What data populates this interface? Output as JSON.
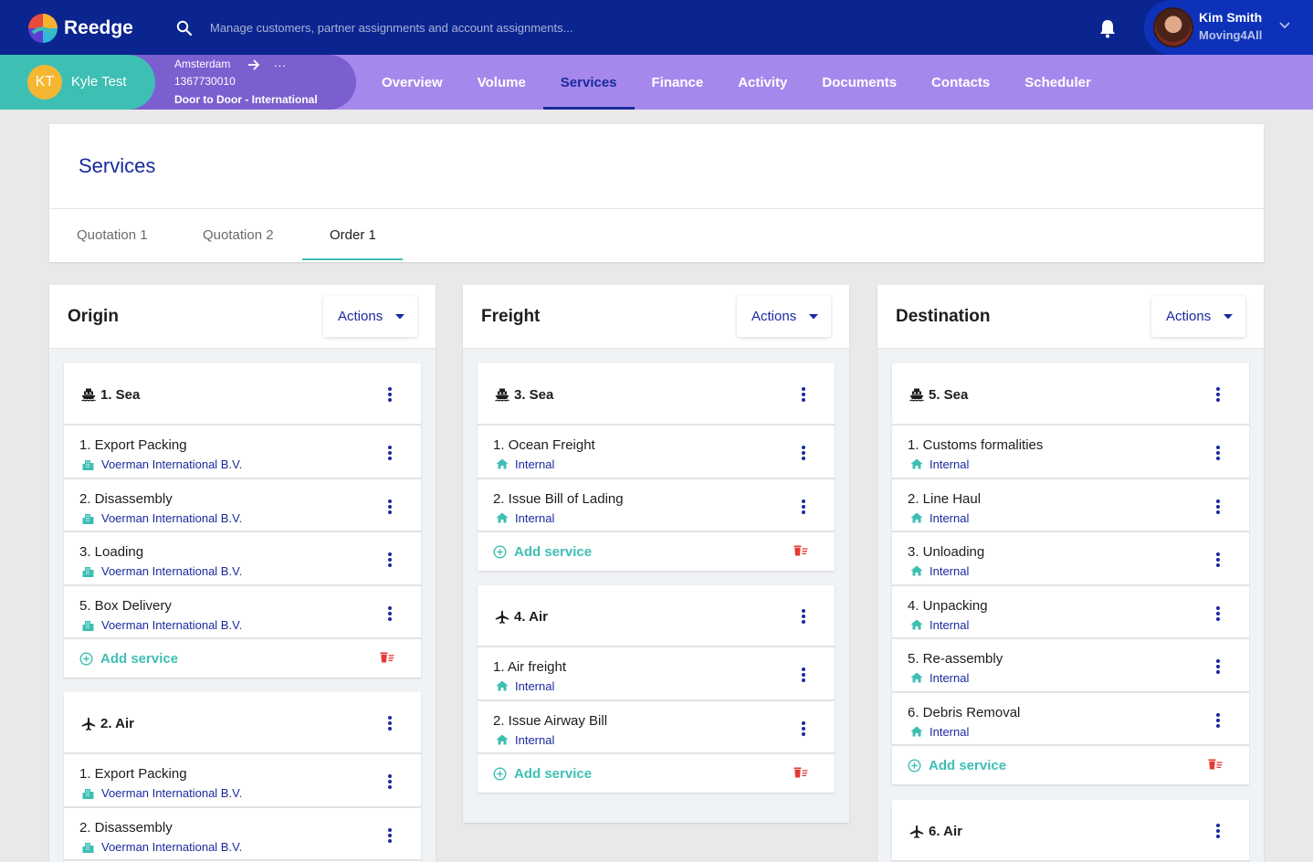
{
  "app": {
    "name": "Reedge"
  },
  "search": {
    "placeholder": "Manage customers, partner assignments and account assignments..."
  },
  "user": {
    "name": "Kim Smith",
    "company": "Moving4All"
  },
  "customer": {
    "initials": "KT",
    "name": "Kyle Test",
    "city": "Amsterdam",
    "more": "...",
    "number": "1367730010",
    "move_type": "Door to Door - International"
  },
  "nav": {
    "items": [
      {
        "label": "Overview"
      },
      {
        "label": "Volume"
      },
      {
        "label": "Services",
        "active": true
      },
      {
        "label": "Finance"
      },
      {
        "label": "Activity"
      },
      {
        "label": "Documents"
      },
      {
        "label": "Contacts"
      },
      {
        "label": "Scheduler"
      }
    ]
  },
  "page": {
    "title": "Services",
    "tabs": [
      {
        "label": "Quotation 1"
      },
      {
        "label": "Quotation 2"
      },
      {
        "label": "Order 1",
        "active": true
      }
    ]
  },
  "actions_label": "Actions",
  "add_service_label": "Add service",
  "columns": [
    {
      "title": "Origin",
      "groups": [
        {
          "icon": "ship-icon",
          "title": "1. Sea",
          "items": [
            {
              "name": "1. Export Packing",
              "provider": "Voerman International B.V.",
              "provider_icon": "building-icon"
            },
            {
              "name": "2. Disassembly",
              "provider": "Voerman International B.V.",
              "provider_icon": "building-icon"
            },
            {
              "name": "3. Loading",
              "provider": "Voerman International B.V.",
              "provider_icon": "building-icon"
            },
            {
              "name": "5. Box Delivery",
              "provider": "Voerman International B.V.",
              "provider_icon": "building-icon"
            }
          ]
        },
        {
          "icon": "plane-icon",
          "title": "2. Air",
          "items": [
            {
              "name": "1. Export Packing",
              "provider": "Voerman International B.V.",
              "provider_icon": "building-icon"
            },
            {
              "name": "2. Disassembly",
              "provider": "Voerman International B.V.",
              "provider_icon": "building-icon"
            }
          ]
        }
      ]
    },
    {
      "title": "Freight",
      "groups": [
        {
          "icon": "ship-icon",
          "title": "3. Sea",
          "items": [
            {
              "name": "1. Ocean Freight",
              "provider": "Internal",
              "provider_icon": "home-icon"
            },
            {
              "name": "2. Issue Bill of Lading",
              "provider": "Internal",
              "provider_icon": "home-icon"
            }
          ]
        },
        {
          "icon": "plane-icon",
          "title": "4. Air",
          "items": [
            {
              "name": "1. Air freight",
              "provider": "Internal",
              "provider_icon": "home-icon"
            },
            {
              "name": "2. Issue Airway Bill",
              "provider": "Internal",
              "provider_icon": "home-icon"
            }
          ]
        }
      ]
    },
    {
      "title": "Destination",
      "groups": [
        {
          "icon": "ship-icon",
          "title": "5. Sea",
          "items": [
            {
              "name": "1. Customs formalities",
              "provider": "Internal",
              "provider_icon": "home-icon"
            },
            {
              "name": "2. Line Haul",
              "provider": "Internal",
              "provider_icon": "home-icon"
            },
            {
              "name": "3. Unloading",
              "provider": "Internal",
              "provider_icon": "home-icon"
            },
            {
              "name": "4. Unpacking",
              "provider": "Internal",
              "provider_icon": "home-icon"
            },
            {
              "name": "5. Re-assembly",
              "provider": "Internal",
              "provider_icon": "home-icon"
            },
            {
              "name": "6. Debris Removal",
              "provider": "Internal",
              "provider_icon": "home-icon"
            }
          ]
        },
        {
          "icon": "plane-icon",
          "title": "6. Air",
          "items": []
        }
      ]
    }
  ],
  "colors": {
    "primary": "#1a2a9e",
    "topbar": "#0b2590",
    "subbar": "#a688ec",
    "accent": "#3ebfb4",
    "delete": "#e53935"
  }
}
